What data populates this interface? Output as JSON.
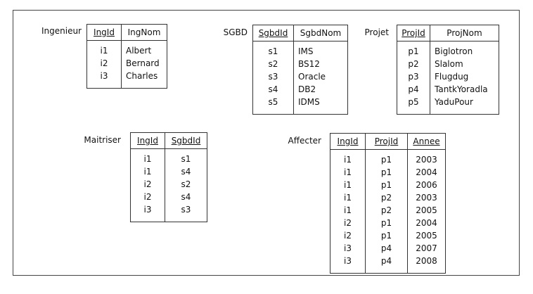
{
  "tables": [
    {
      "name": "Ingenieur",
      "columns": [
        "IngId",
        "IngNom"
      ],
      "keys": [
        0
      ],
      "rows": [
        [
          "i1",
          "Albert"
        ],
        [
          "i2",
          "Bernard"
        ],
        [
          "i3",
          "Charles"
        ]
      ]
    },
    {
      "name": "SGBD",
      "columns": [
        "SgbdId",
        "SgbdNom"
      ],
      "keys": [
        0
      ],
      "rows": [
        [
          "s1",
          "IMS"
        ],
        [
          "s2",
          "BS12"
        ],
        [
          "s3",
          "Oracle"
        ],
        [
          "s4",
          "DB2"
        ],
        [
          "s5",
          "IDMS"
        ]
      ]
    },
    {
      "name": "Projet",
      "columns": [
        "ProjId",
        "ProjNom"
      ],
      "keys": [
        0
      ],
      "rows": [
        [
          "p1",
          "Biglotron"
        ],
        [
          "p2",
          "Slalom"
        ],
        [
          "p3",
          "Flugdug"
        ],
        [
          "p4",
          "TantkYoradla"
        ],
        [
          "p5",
          "YaduPour"
        ]
      ]
    },
    {
      "name": "Maitriser",
      "columns": [
        "IngId",
        "SgbdId"
      ],
      "keys": [
        0,
        1
      ],
      "rows": [
        [
          "i1",
          "s1"
        ],
        [
          "i1",
          "s4"
        ],
        [
          "i2",
          "s2"
        ],
        [
          "i2",
          "s4"
        ],
        [
          "i3",
          "s3"
        ]
      ]
    },
    {
      "name": "Affecter",
      "columns": [
        "IngId",
        "ProjId",
        "Annee"
      ],
      "keys": [
        0,
        1,
        2
      ],
      "rows": [
        [
          "i1",
          "p1",
          "2003"
        ],
        [
          "i1",
          "p1",
          "2004"
        ],
        [
          "i1",
          "p1",
          "2006"
        ],
        [
          "i1",
          "p2",
          "2003"
        ],
        [
          "i1",
          "p2",
          "2005"
        ],
        [
          "i2",
          "p1",
          "2004"
        ],
        [
          "i2",
          "p1",
          "2005"
        ],
        [
          "i3",
          "p4",
          "2007"
        ],
        [
          "i3",
          "p4",
          "2008"
        ]
      ]
    }
  ]
}
